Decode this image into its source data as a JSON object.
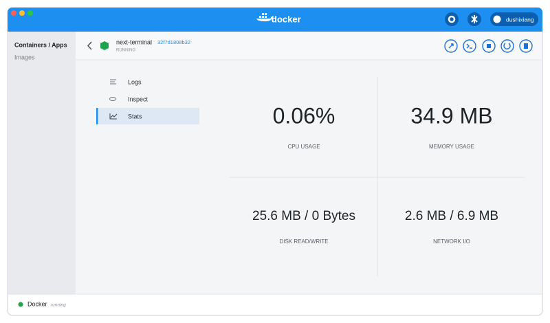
{
  "title_bar": {
    "logo_text": "docker",
    "user": "dushixiang"
  },
  "sidebar": {
    "items": [
      "Containers / Apps",
      "Images"
    ]
  },
  "container": {
    "name": "next-terminal",
    "id": "32f7d1808b32",
    "status": "RUNNING"
  },
  "tabs": [
    "Logs",
    "Inspect",
    "Stats"
  ],
  "stats": [
    {
      "value": "0.06%",
      "label": "CPU USAGE"
    },
    {
      "value": "34.9 MB",
      "label": "MEMORY USAGE"
    },
    {
      "value": "25.6 MB / 0 Bytes",
      "label": "DISK READ/WRITE"
    },
    {
      "value": "2.6 MB / 6.9 MB",
      "label": "NETWORK I/O"
    }
  ],
  "footer": {
    "app": "Docker",
    "state": "running"
  }
}
